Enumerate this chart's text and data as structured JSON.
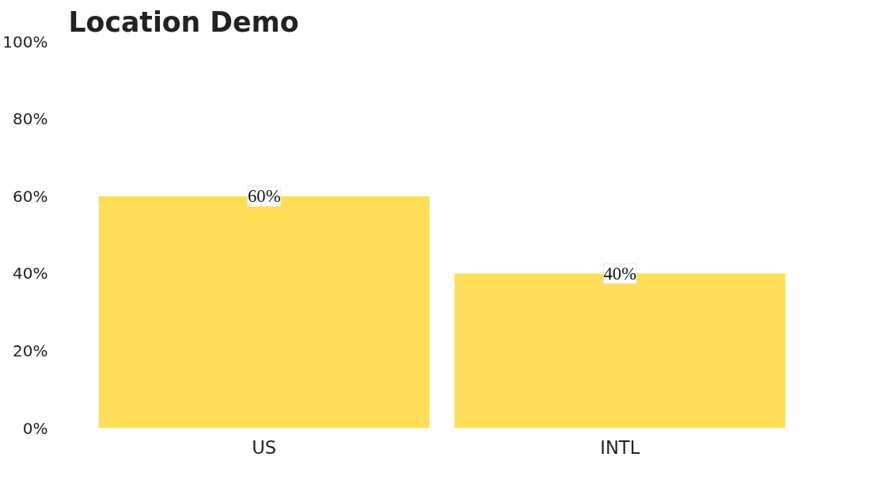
{
  "chart_data": {
    "type": "bar",
    "title": "Location Demo",
    "categories": [
      "US",
      "INTL"
    ],
    "values": [
      60,
      40
    ],
    "color": "#fedd59",
    "value_labels": [
      "60%",
      "40%"
    ],
    "ylim": [
      0,
      100
    ],
    "yticks": [
      {
        "value": 0,
        "label": "0%"
      },
      {
        "value": 20,
        "label": "20%"
      },
      {
        "value": 40,
        "label": "40%"
      },
      {
        "value": 60,
        "label": "60%"
      },
      {
        "value": 80,
        "label": "80%"
      },
      {
        "value": 100,
        "label": "100%"
      }
    ],
    "grid": false
  }
}
